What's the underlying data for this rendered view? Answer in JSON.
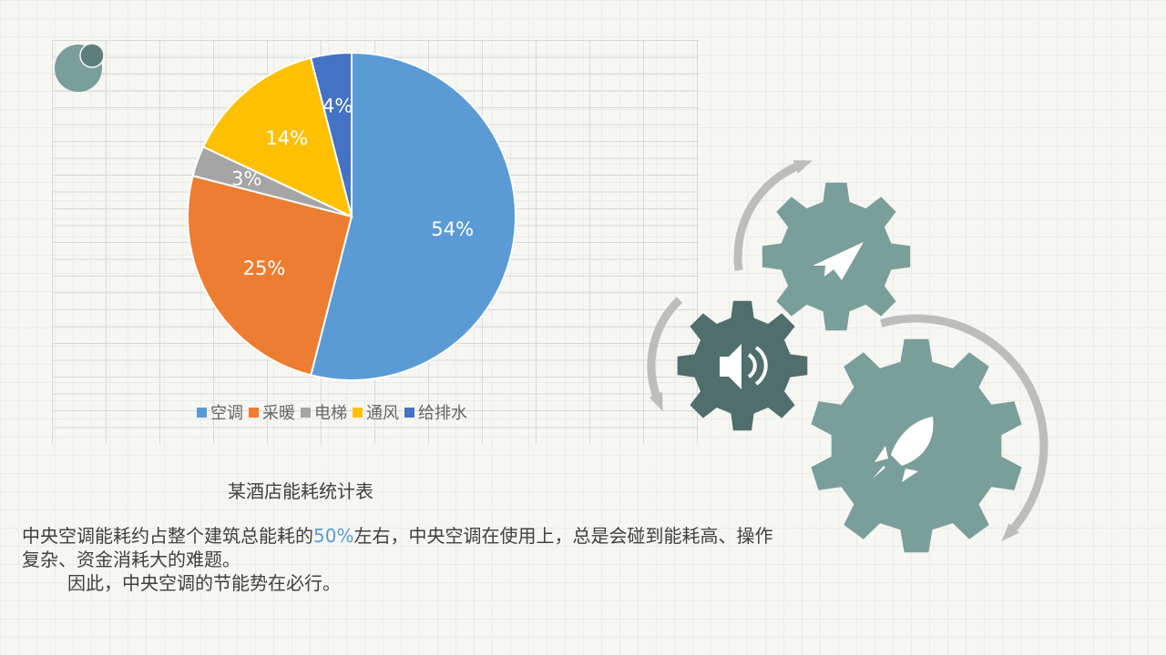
{
  "chart_data": {
    "type": "pie",
    "categories": [
      "空调",
      "采暖",
      "电梯",
      "通风",
      "给排水"
    ],
    "values": [
      54,
      25,
      3,
      14,
      4
    ],
    "data_labels": [
      "54%",
      "25%",
      "3%",
      "14%",
      "4%"
    ],
    "colors": [
      "#5B9BD5",
      "#ED7D31",
      "#A5A5A5",
      "#FFC000",
      "#4472C4"
    ],
    "start_angle": "top, clockwise",
    "legend": "bottom",
    "title": ""
  },
  "caption": "某酒店能耗统计表",
  "body": {
    "line1_before": "中央空调能耗约占整个建筑总能耗的",
    "highlight": "50%",
    "line1_after": "左右，中央空调在使用上，总是会碰到能耗高、操作复杂、资金消耗大的难题。",
    "line2": "因此，中央空调的节能势在必行。",
    "highlight_color": "#5B9BD5"
  },
  "decor": {
    "gear_color": "#7A9E99",
    "gear_dark_color": "#4F6E6C",
    "arrow_color": "#BDBDBD",
    "icons": [
      "paper-plane-icon",
      "speaker-icon",
      "rocket-icon"
    ]
  }
}
